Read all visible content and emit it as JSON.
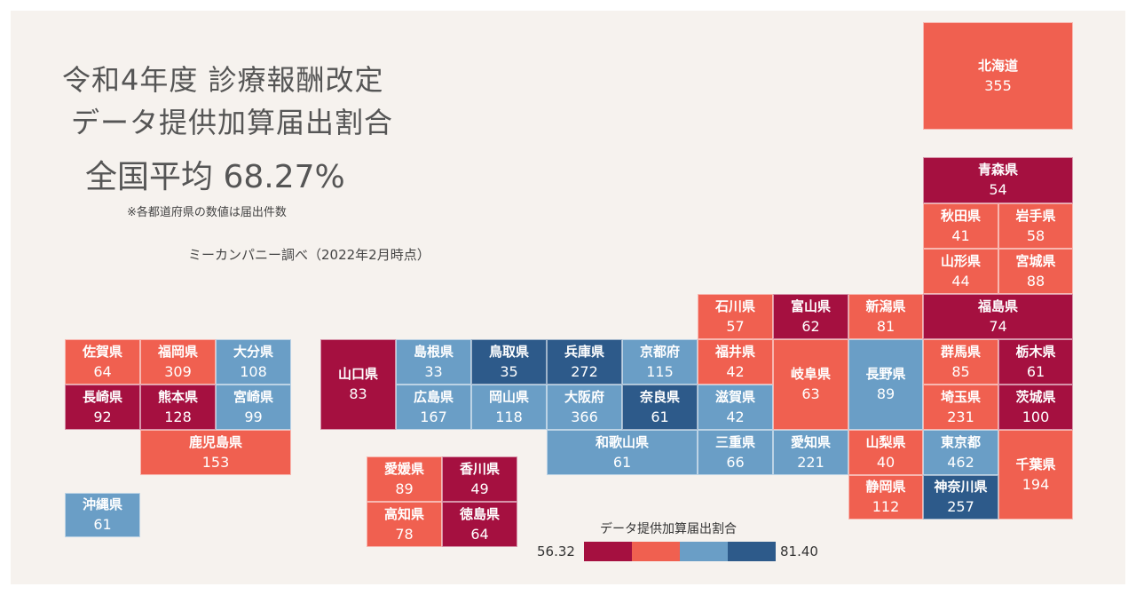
{
  "title_line1": "令和4年度 診療報酬改定",
  "title_line2": "データ提供加算届出割合",
  "average": "全国平均 68.27%",
  "note": "※各都道府県の数値は届出件数",
  "survey": "ミーカンパニー調べ（2022年2月時点）",
  "legend": {
    "title": "データ提供加算届出割合",
    "min": "56.32",
    "max": "81.40",
    "colors": [
      "#a51040",
      "#f06050",
      "#6a9ec6",
      "#2d5a8a"
    ]
  },
  "prefectures": [
    {
      "name": "北海道",
      "count": "355",
      "color": "#f06050"
    },
    {
      "name": "青森県",
      "count": "54",
      "color": "#a51040"
    },
    {
      "name": "秋田県",
      "count": "41",
      "color": "#f06050"
    },
    {
      "name": "岩手県",
      "count": "58",
      "color": "#f06050"
    },
    {
      "name": "山形県",
      "count": "44",
      "color": "#f06050"
    },
    {
      "name": "宮城県",
      "count": "88",
      "color": "#f06050"
    },
    {
      "name": "石川県",
      "count": "57",
      "color": "#f06050"
    },
    {
      "name": "富山県",
      "count": "62",
      "color": "#a51040"
    },
    {
      "name": "新潟県",
      "count": "81",
      "color": "#f06050"
    },
    {
      "name": "福島県",
      "count": "74",
      "color": "#a51040"
    },
    {
      "name": "佐賀県",
      "count": "64",
      "color": "#f06050"
    },
    {
      "name": "福岡県",
      "count": "309",
      "color": "#f06050"
    },
    {
      "name": "大分県",
      "count": "108",
      "color": "#6a9ec6"
    },
    {
      "name": "山口県",
      "count": "83",
      "color": "#a51040"
    },
    {
      "name": "島根県",
      "count": "33",
      "color": "#6a9ec6"
    },
    {
      "name": "鳥取県",
      "count": "35",
      "color": "#2d5a8a"
    },
    {
      "name": "兵庫県",
      "count": "272",
      "color": "#2d5a8a"
    },
    {
      "name": "京都府",
      "count": "115",
      "color": "#6a9ec6"
    },
    {
      "name": "福井県",
      "count": "42",
      "color": "#f06050"
    },
    {
      "name": "岐阜県",
      "count": "63",
      "color": "#f06050"
    },
    {
      "name": "長野県",
      "count": "89",
      "color": "#6a9ec6"
    },
    {
      "name": "群馬県",
      "count": "85",
      "color": "#f06050"
    },
    {
      "name": "栃木県",
      "count": "61",
      "color": "#a51040"
    },
    {
      "name": "長崎県",
      "count": "92",
      "color": "#a51040"
    },
    {
      "name": "熊本県",
      "count": "128",
      "color": "#a51040"
    },
    {
      "name": "宮崎県",
      "count": "99",
      "color": "#6a9ec6"
    },
    {
      "name": "広島県",
      "count": "167",
      "color": "#6a9ec6"
    },
    {
      "name": "岡山県",
      "count": "118",
      "color": "#6a9ec6"
    },
    {
      "name": "大阪府",
      "count": "366",
      "color": "#6a9ec6"
    },
    {
      "name": "奈良県",
      "count": "61",
      "color": "#2d5a8a"
    },
    {
      "name": "滋賀県",
      "count": "42",
      "color": "#6a9ec6"
    },
    {
      "name": "埼玉県",
      "count": "231",
      "color": "#f06050"
    },
    {
      "name": "茨城県",
      "count": "100",
      "color": "#a51040"
    },
    {
      "name": "鹿児島県",
      "count": "153",
      "color": "#f06050"
    },
    {
      "name": "和歌山県",
      "count": "61",
      "color": "#6a9ec6"
    },
    {
      "name": "三重県",
      "count": "66",
      "color": "#6a9ec6"
    },
    {
      "name": "愛知県",
      "count": "221",
      "color": "#6a9ec6"
    },
    {
      "name": "山梨県",
      "count": "40",
      "color": "#f06050"
    },
    {
      "name": "東京都",
      "count": "462",
      "color": "#6a9ec6"
    },
    {
      "name": "千葉県",
      "count": "194",
      "color": "#f06050"
    },
    {
      "name": "愛媛県",
      "count": "89",
      "color": "#f06050"
    },
    {
      "name": "香川県",
      "count": "49",
      "color": "#a51040"
    },
    {
      "name": "静岡県",
      "count": "112",
      "color": "#f06050"
    },
    {
      "name": "神奈川県",
      "count": "257",
      "color": "#2d5a8a"
    },
    {
      "name": "高知県",
      "count": "78",
      "color": "#f06050"
    },
    {
      "name": "徳島県",
      "count": "64",
      "color": "#a51040"
    },
    {
      "name": "沖縄県",
      "count": "61",
      "color": "#6a9ec6"
    }
  ]
}
